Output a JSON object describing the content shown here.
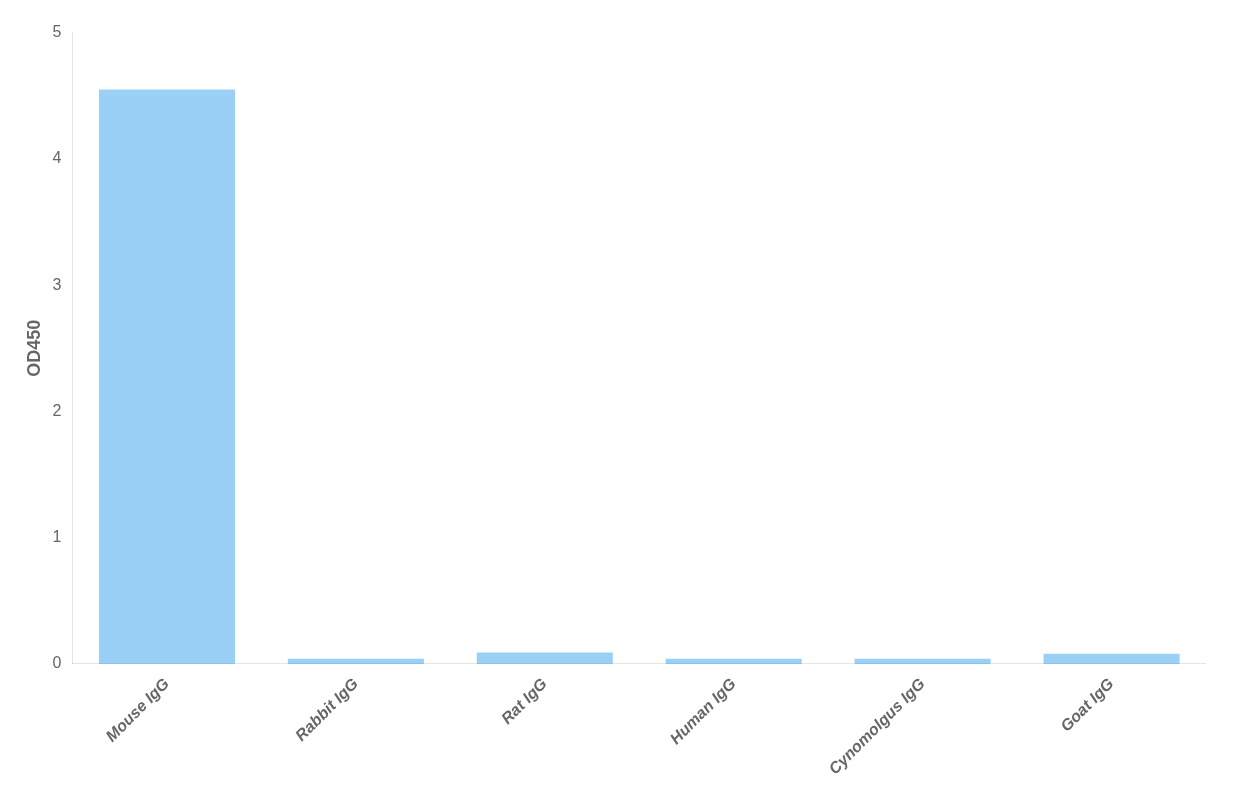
{
  "chart_data": {
    "type": "bar",
    "categories": [
      "Mouse IgG",
      "Rabbit IgG",
      "Rat IgG",
      "Human IgG",
      "Cynomolgus IgG",
      "Goat IgG"
    ],
    "values": [
      4.55,
      0.04,
      0.09,
      0.04,
      0.04,
      0.08
    ],
    "ylabel": "OD450",
    "ylim": [
      0,
      5
    ],
    "yticks": [
      0,
      1,
      2,
      3,
      4,
      5
    ],
    "grid": false
  }
}
